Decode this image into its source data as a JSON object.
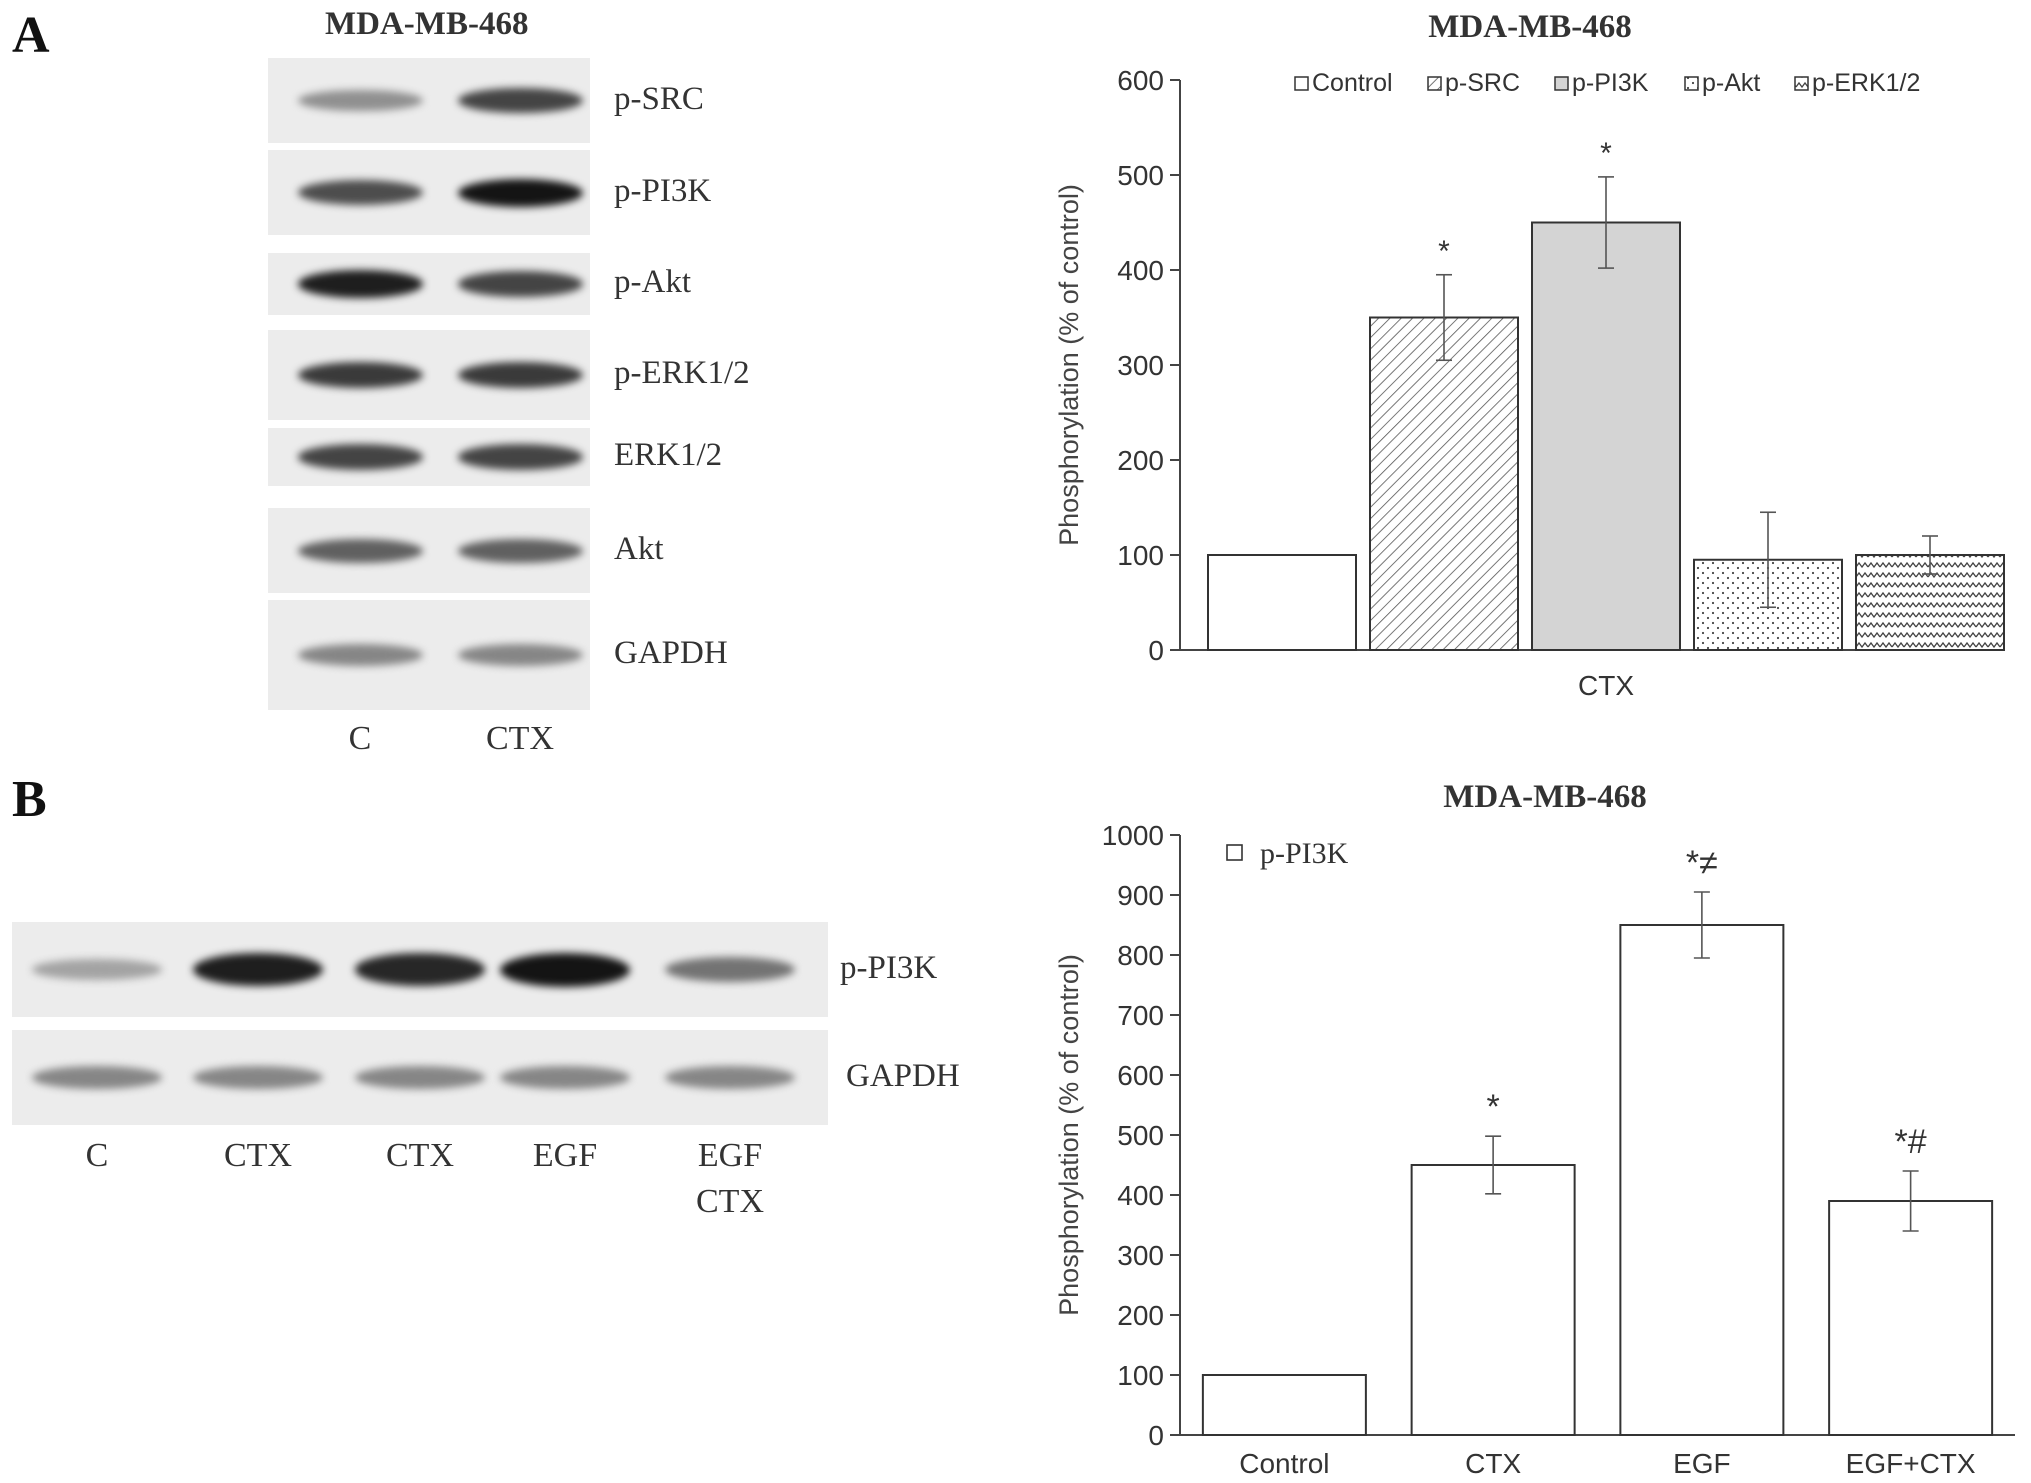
{
  "panel_a": {
    "letter": "A",
    "blot": {
      "title": "MDA-MB-468",
      "rows": [
        {
          "label": "p-SRC",
          "band_intensity": [
            0.35,
            0.75
          ]
        },
        {
          "label": "p-PI3K",
          "band_intensity": [
            0.7,
            1.0
          ]
        },
        {
          "label": "p-Akt",
          "band_intensity": [
            0.95,
            0.75
          ]
        },
        {
          "label": "p-ERK1/2",
          "band_intensity": [
            0.8,
            0.8
          ]
        },
        {
          "label": "ERK1/2",
          "band_intensity": [
            0.75,
            0.75
          ]
        },
        {
          "label": "Akt",
          "band_intensity": [
            0.6,
            0.6
          ]
        },
        {
          "label": "GAPDH",
          "band_intensity": [
            0.4,
            0.4
          ]
        }
      ],
      "lanes": [
        "C",
        "CTX"
      ]
    }
  },
  "panel_b": {
    "letter": "B",
    "blot": {
      "rows": [
        {
          "label": "p-PI3K",
          "band_intensity": [
            0.25,
            0.95,
            0.9,
            1.0,
            0.5
          ]
        },
        {
          "label": "GAPDH",
          "band_intensity": [
            0.4,
            0.4,
            0.4,
            0.4,
            0.4
          ]
        }
      ],
      "lanes": [
        "C",
        "CTX",
        "CTX",
        "EGF",
        "EGF\nCTX"
      ]
    }
  },
  "chart_data": [
    {
      "type": "bar",
      "title": "MDA-MB-468",
      "ylabel": "Phosphorylation (% of control)",
      "xlabel": "",
      "categories": [
        "CTX"
      ],
      "ylim": [
        0,
        600
      ],
      "yticks": [
        0,
        100,
        200,
        300,
        400,
        500,
        600
      ],
      "legend_position": "top",
      "series": [
        {
          "name": "Control",
          "values": [
            100
          ],
          "error": [
            0
          ],
          "annotation": "",
          "pattern": "none",
          "fill": "#ffffff"
        },
        {
          "name": "p-SRC",
          "values": [
            350
          ],
          "error": [
            45
          ],
          "annotation": "*",
          "pattern": "diagonal",
          "fill": "#ffffff"
        },
        {
          "name": "p-PI3K",
          "values": [
            450
          ],
          "error": [
            48
          ],
          "annotation": "*",
          "pattern": "solid",
          "fill": "#d4d4d4"
        },
        {
          "name": "p-Akt",
          "values": [
            95
          ],
          "error": [
            50
          ],
          "annotation": "",
          "pattern": "dots",
          "fill": "#ffffff"
        },
        {
          "name": "p-ERK1/2",
          "values": [
            100
          ],
          "error": [
            20
          ],
          "annotation": "",
          "pattern": "zigzag",
          "fill": "#ffffff"
        }
      ]
    },
    {
      "type": "bar",
      "title": "MDA-MB-468",
      "ylabel": "Phosphorylation (% of control)",
      "xlabel": "",
      "categories": [
        "Control",
        "CTX",
        "EGF",
        "EGF+CTX"
      ],
      "ylim": [
        0,
        1000
      ],
      "yticks": [
        0,
        100,
        200,
        300,
        400,
        500,
        600,
        700,
        800,
        900,
        1000
      ],
      "legend_position": "top-left",
      "series": [
        {
          "name": "p-PI3K",
          "values": [
            100,
            450,
            850,
            390
          ],
          "error": [
            0,
            48,
            55,
            50
          ],
          "annotations": [
            "",
            "*",
            "*≠",
            "*#"
          ]
        }
      ]
    }
  ]
}
